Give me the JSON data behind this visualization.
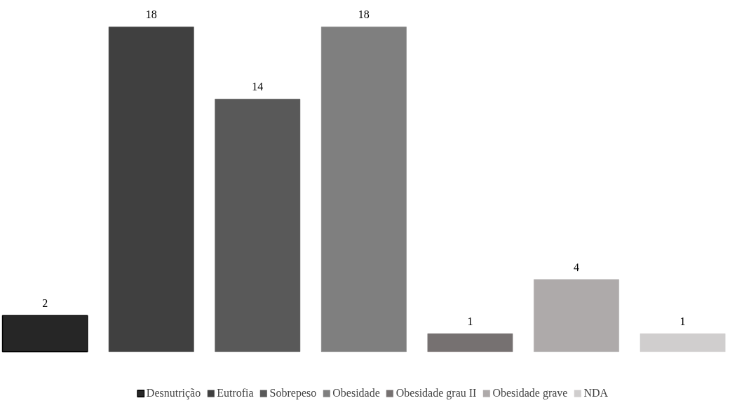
{
  "chart_data": {
    "type": "bar",
    "categories": [
      null,
      null,
      null,
      null,
      null,
      null,
      null
    ],
    "series": [
      {
        "name": "Desnutrição",
        "color": "#262626",
        "values": [
          2,
          null,
          null,
          null,
          null,
          null,
          null
        ]
      },
      {
        "name": "Eutrofia",
        "color": "#404040",
        "values": [
          null,
          18,
          null,
          null,
          null,
          null,
          null
        ]
      },
      {
        "name": "Sobrepeso",
        "color": "#595959",
        "values": [
          null,
          null,
          14,
          null,
          null,
          null,
          null
        ]
      },
      {
        "name": "Obesidade",
        "color": "#7f7f7f",
        "values": [
          null,
          null,
          null,
          18,
          null,
          null,
          null
        ]
      },
      {
        "name": "Obesidade grau II",
        "color": "#767171",
        "values": [
          null,
          null,
          null,
          null,
          1,
          null,
          null
        ]
      },
      {
        "name": "Obesidade grave",
        "color": "#aeaaaa",
        "values": [
          null,
          null,
          null,
          null,
          null,
          4,
          null
        ]
      },
      {
        "name": "NDA",
        "color": "#d0cece",
        "values": [
          null,
          null,
          null,
          null,
          null,
          null,
          1
        ]
      }
    ],
    "stacked": true,
    "data_labels": true,
    "legend": "bottom",
    "grid": false
  }
}
